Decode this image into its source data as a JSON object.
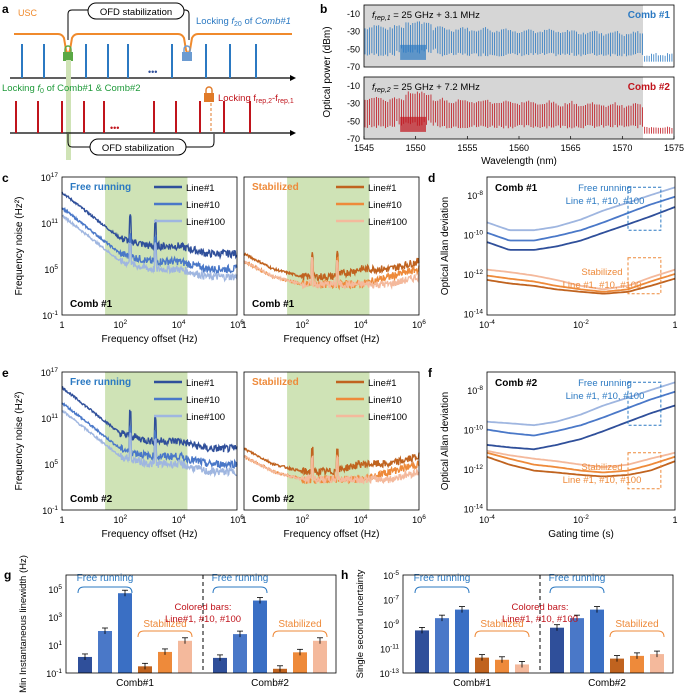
{
  "colors": {
    "blue_dark": "#2f4f9a",
    "blue_mid": "#4a78c8",
    "blue_light": "#9fb6e0",
    "orange_dark": "#c0631f",
    "orange_mid": "#ee8a3a",
    "orange_light": "#f4b99c",
    "red": "#c0141c",
    "green_band": "#cfe3b6",
    "green_text": "#1f9a3a",
    "orange_line": "#f08a2c",
    "grey_band": "#d6d6d6",
    "blue_text": "#2b79c2",
    "orange_text": "#ee8a3a"
  },
  "panel_a": {
    "label": "a",
    "usc": "USC",
    "ofd_top": "OFD stabilization",
    "ofd_bottom": "OFD stabilization",
    "lock_f20_prefix": "Locking ",
    "lock_f20_italic": "f",
    "lock_f20_sub": "20",
    "lock_f20_suffix": " of ",
    "lock_f20_comb": "Comb#1",
    "lock_f0_prefix": "Locking ",
    "lock_f0_sub": "0",
    "lock_f0_suffix": " of Comb#1 & Comb#2",
    "lock_frep": "Locking f",
    "lock_frep_sub1": "rep,2",
    "lock_frep_mid": "-f",
    "lock_frep_sub2": "rep,1",
    "dots": "•••"
  },
  "panel_b": {
    "label": "b",
    "ylabel": "Optical power (dBm)",
    "xlabel": "Wavelength (nm)",
    "xticks": [
      "1545",
      "1550",
      "1555",
      "1560",
      "1565",
      "1570",
      "1575"
    ],
    "yticks": [
      "-10",
      "-30",
      "-50",
      "-70"
    ],
    "top_f": "f",
    "top_sub": "rep,1",
    "top_eq": " = 25 GHz + 3.1 MHz",
    "top_comb": "Comb #1",
    "bottom_f": "f",
    "bottom_sub": "rep,2",
    "bottom_eq": " = 25 GHz + 7.2 MHz",
    "bottom_comb": "Comb #2"
  },
  "noise_panels": {
    "c_label": "c",
    "e_label": "e",
    "ylabel": "Frequency noise (Hz²)",
    "xlabel": "Frequency offset (Hz)",
    "free": "Free running",
    "stab": "Stabilized",
    "comb1": "Comb #1",
    "comb2": "Comb #2",
    "legend": [
      "Line#1",
      "Line#10",
      "Line#100"
    ],
    "yticks": [
      {
        "b": "10",
        "e": "17"
      },
      {
        "b": "10",
        "e": "11"
      },
      {
        "b": "10",
        "e": "5"
      },
      {
        "b": "10",
        "e": "-1"
      }
    ],
    "xticks": [
      {
        "b": "1",
        "e": ""
      },
      {
        "b": "10",
        "e": "2"
      },
      {
        "b": "10",
        "e": "4"
      },
      {
        "b": "10",
        "e": "6"
      }
    ]
  },
  "allan_panels": {
    "d_label": "d",
    "f_label": "f",
    "ylabel": "Optical Allan deviation",
    "xlabel": "Gating time (s)",
    "comb1": "Comb #1",
    "comb2": "Comb #2",
    "free": "Free running",
    "free_lines": "Line #1, #10, #100",
    "stab": "Stabilized",
    "stab_lines": "Line #1, #10, #100",
    "yticks": [
      {
        "b": "10",
        "e": "-8"
      },
      {
        "b": "10",
        "e": "-10"
      },
      {
        "b": "10",
        "e": "-12"
      },
      {
        "b": "10",
        "e": "-14"
      }
    ],
    "xticks": [
      {
        "b": "10",
        "e": "-4"
      },
      {
        "b": "10",
        "e": "-2"
      },
      {
        "b": "1",
        "e": ""
      }
    ]
  },
  "panel_g": {
    "label": "g",
    "ylabel": "Min Instantaneous linewidth (Hz)",
    "free": "Free running",
    "stab": "Stabilized",
    "note1": "Colored bars:",
    "note2": "Line#1, #10, #100",
    "groups": [
      "Comb#1",
      "Comb#2"
    ],
    "yticks": [
      {
        "b": "10",
        "e": "5"
      },
      {
        "b": "10",
        "e": "3"
      },
      {
        "b": "10",
        "e": "1"
      },
      {
        "b": "10",
        "e": "-1"
      }
    ]
  },
  "panel_h": {
    "label": "h",
    "ylabel": "Single second uncertainty",
    "free": "Free running",
    "stab": "Stabilized",
    "note1": "Colored bars:",
    "note2": "Line#1, #10, #100",
    "groups": [
      "Comb#1",
      "Comb#2"
    ],
    "yticks": [
      {
        "b": "10",
        "e": "-5"
      },
      {
        "b": "10",
        "e": "-7"
      },
      {
        "b": "10",
        "e": "-9"
      },
      {
        "b": "10",
        "e": "-11"
      },
      {
        "b": "10",
        "e": "-13"
      }
    ]
  },
  "chart_data": [
    {
      "type": "line",
      "title": "Comb #1",
      "xlabel": "Wavelength (nm)",
      "ylabel": "Optical power (dBm)",
      "xlim": [
        1545,
        1575
      ],
      "ylim": [
        -70,
        0
      ],
      "series": [
        {
          "name": "Comb #1",
          "x": [
            1545,
            1550,
            1555,
            1560,
            1565,
            1570,
            1572
          ],
          "y": [
            -30,
            -25,
            -25,
            -28,
            -30,
            -33,
            -35
          ]
        }
      ]
    },
    {
      "type": "line",
      "title": "Comb #2",
      "xlabel": "Wavelength (nm)",
      "ylabel": "Optical power (dBm)",
      "xlim": [
        1545,
        1575
      ],
      "ylim": [
        -70,
        0
      ],
      "series": [
        {
          "name": "Comb #2",
          "x": [
            1545,
            1550,
            1555,
            1560,
            1565,
            1570,
            1572
          ],
          "y": [
            -30,
            -22,
            -25,
            -28,
            -30,
            -33,
            -35
          ]
        }
      ]
    },
    {
      "type": "line",
      "xlabel": "Frequency offset (Hz)",
      "ylabel": "Frequency noise (Hz²)",
      "log_x": true,
      "log_y": true,
      "xlim": [
        1,
        1000000
      ],
      "ylim": [
        0.1,
        1e+17
      ],
      "panels": {
        "free_comb1": {
          "x": [
            1,
            10,
            100,
            1000,
            10000,
            100000,
            1000000
          ],
          "series": [
            {
              "name": "Line#1",
              "y": [
                1000000000000.0,
                1000000000.0,
                1000000.0,
                100000.0,
                100000.0,
                10000.0,
                10000.0
              ]
            },
            {
              "name": "Line#10",
              "y": [
                10000000000000.0,
                10000000000.0,
                10000000.0,
                1000000.0,
                1000000.0,
                100000.0,
                100000.0
              ]
            },
            {
              "name": "Line#100",
              "y": [
                1000000000000000.0,
                1000000000000.0,
                1000000000.0,
                100000000.0,
                100000000.0,
                10000000.0,
                10000000.0
              ]
            }
          ]
        },
        "stab_comb1": {
          "x": [
            1,
            10,
            100,
            1000,
            10000,
            100000,
            1000000
          ],
          "series": [
            {
              "name": "Line#1",
              "y": [
                1000000.0,
                10000.0,
                1000.0,
                1000.0,
                1000.0,
                1000.0,
                10000.0
              ]
            },
            {
              "name": "Line#10",
              "y": [
                1000000.0,
                10000.0,
                1000.0,
                1000.0,
                1000.0,
                10000.0,
                100000.0
              ]
            },
            {
              "name": "Line#100",
              "y": [
                10000000.0,
                100000.0,
                10000.0,
                10000.0,
                100000.0,
                100000.0,
                1000000.0
              ]
            }
          ]
        },
        "free_comb2": {
          "x": [
            1,
            10,
            100,
            1000,
            10000,
            100000,
            1000000
          ],
          "series": [
            {
              "name": "Line#1",
              "y": [
                1000000000000.0,
                1000000000.0,
                1000000.0,
                100000.0,
                100000.0,
                10000.0,
                10000.0
              ]
            },
            {
              "name": "Line#10",
              "y": [
                10000000000000.0,
                10000000000.0,
                10000000.0,
                1000000.0,
                1000000.0,
                100000.0,
                100000.0
              ]
            },
            {
              "name": "Line#100",
              "y": [
                1000000000000000.0,
                1000000000000.0,
                1000000000.0,
                100000000.0,
                100000000.0,
                10000000.0,
                10000000.0
              ]
            }
          ]
        },
        "stab_comb2": {
          "x": [
            1,
            10,
            100,
            1000,
            10000,
            100000,
            1000000
          ],
          "series": [
            {
              "name": "Line#1",
              "y": [
                1000000.0,
                10000.0,
                1000.0,
                1000.0,
                1000.0,
                1000.0,
                10000.0
              ]
            },
            {
              "name": "Line#10",
              "y": [
                1000000.0,
                10000.0,
                1000.0,
                1000.0,
                1000.0,
                10000.0,
                100000.0
              ]
            },
            {
              "name": "Line#100",
              "y": [
                10000000.0,
                100000.0,
                10000.0,
                10000.0,
                100000.0,
                100000.0,
                1000000.0
              ]
            }
          ]
        }
      },
      "shaded_band_hz": [
        30,
        20000
      ]
    },
    {
      "type": "line",
      "xlabel": "Gating time (s)",
      "ylabel": "Optical Allan deviation",
      "log_x": true,
      "log_y": true,
      "xlim": [
        0.0001,
        1
      ],
      "ylim": [
        1e-14,
        1e-07
      ],
      "panels": {
        "comb1": {
          "x": [
            0.0001,
            0.0003,
            0.001,
            0.003,
            0.01,
            0.03,
            0.1,
            0.3,
            1
          ],
          "series": [
            {
              "name": "Free Line#1",
              "y": [
                5e-11,
                2e-11,
                2e-11,
                3e-11,
                6e-11,
                1.5e-10,
                4e-10,
                1e-09,
                3e-09
              ]
            },
            {
              "name": "Free Line#10",
              "y": [
                1.5e-10,
                6e-11,
                6e-11,
                1e-10,
                2e-10,
                5e-10,
                1.5e-09,
                4e-09,
                1e-08
              ]
            },
            {
              "name": "Free Line#100",
              "y": [
                5e-10,
                2e-10,
                2e-10,
                3e-10,
                7e-10,
                2e-09,
                5e-09,
                1.2e-08,
                3e-08
              ]
            },
            {
              "name": "Stab Line#1",
              "y": [
                6e-13,
                4e-13,
                3e-13,
                2e-13,
                1.5e-13,
                1.2e-13,
                1.5e-13,
                3e-13,
                7e-13
              ]
            },
            {
              "name": "Stab Line#10",
              "y": [
                1e-12,
                7e-13,
                5e-13,
                3e-13,
                2e-13,
                1.5e-13,
                2e-13,
                5e-13,
                1.2e-12
              ]
            },
            {
              "name": "Stab Line#100",
              "y": [
                2e-12,
                1.5e-12,
                1e-12,
                6e-13,
                3e-13,
                2e-13,
                3e-13,
                8e-13,
                2e-12
              ]
            }
          ]
        },
        "comb2": {
          "x": [
            0.0001,
            0.0003,
            0.001,
            0.003,
            0.01,
            0.03,
            0.1,
            0.3,
            1
          ],
          "series": [
            {
              "name": "Free Line#1",
              "y": [
                2e-11,
                1.5e-11,
                1.2e-11,
                2e-11,
                4e-11,
                1e-10,
                3e-10,
                8e-10,
                2e-09
              ]
            },
            {
              "name": "Free Line#10",
              "y": [
                1.2e-10,
                8e-11,
                6e-11,
                1e-10,
                2e-10,
                5e-10,
                1.5e-09,
                4e-09,
                1e-08
              ]
            },
            {
              "name": "Free Line#100",
              "y": [
                3e-10,
                2.5e-10,
                2e-10,
                3e-10,
                7e-10,
                2e-09,
                5e-09,
                1.2e-08,
                3e-08
              ]
            },
            {
              "name": "Stab Line#1",
              "y": [
                5e-12,
                2e-12,
                1e-12,
                8e-13,
                6e-13,
                5e-13,
                6e-13,
                1e-12,
                3e-12
              ]
            },
            {
              "name": "Stab Line#10",
              "y": [
                8e-12,
                4e-12,
                2e-12,
                1.5e-12,
                1e-12,
                8e-13,
                1e-12,
                2e-12,
                5e-12
              ]
            },
            {
              "name": "Stab Line#100",
              "y": [
                1e-11,
                6e-12,
                4e-12,
                3e-12,
                2e-12,
                1.5e-12,
                2e-12,
                4e-12,
                8e-12
              ]
            }
          ]
        }
      }
    },
    {
      "type": "bar",
      "ylabel": "Min Instantaneous linewidth (Hz)",
      "log_y": true,
      "ylim": [
        0.1,
        1000000
      ],
      "categories": [
        "Comb#1",
        "Comb#2"
      ],
      "series": [
        {
          "name": "Free running Line#1",
          "values": [
            1.4,
            1.2
          ]
        },
        {
          "name": "Free running Line#10",
          "values": [
            100,
            60
          ]
        },
        {
          "name": "Free running Line#100",
          "values": [
            50000,
            15000
          ]
        },
        {
          "name": "Stabilized Line#1",
          "values": [
            0.3,
            0.2
          ]
        },
        {
          "name": "Stabilized Line#10",
          "values": [
            3.2,
            3.0
          ]
        },
        {
          "name": "Stabilized Line#100",
          "values": [
            20,
            20
          ]
        }
      ]
    },
    {
      "type": "bar",
      "ylabel": "Single second uncertainty",
      "log_y": true,
      "ylim": [
        1e-13,
        1e-05
      ],
      "categories": [
        "Comb#1",
        "Comb#2"
      ],
      "series": [
        {
          "name": "Free running Line#1",
          "values": [
            3e-10,
            5e-10
          ]
        },
        {
          "name": "Free running Line#10",
          "values": [
            3e-09,
            3e-09
          ]
        },
        {
          "name": "Free running Line#100",
          "values": [
            1.5e-08,
            1.5e-08
          ]
        },
        {
          "name": "Stabilized Line#1",
          "values": [
            1.8e-12,
            1.5e-12
          ]
        },
        {
          "name": "Stabilized Line#10",
          "values": [
            1.2e-12,
            2.5e-12
          ]
        },
        {
          "name": "Stabilized Line#100",
          "values": [
            5e-13,
            3.5e-12
          ]
        }
      ]
    }
  ]
}
